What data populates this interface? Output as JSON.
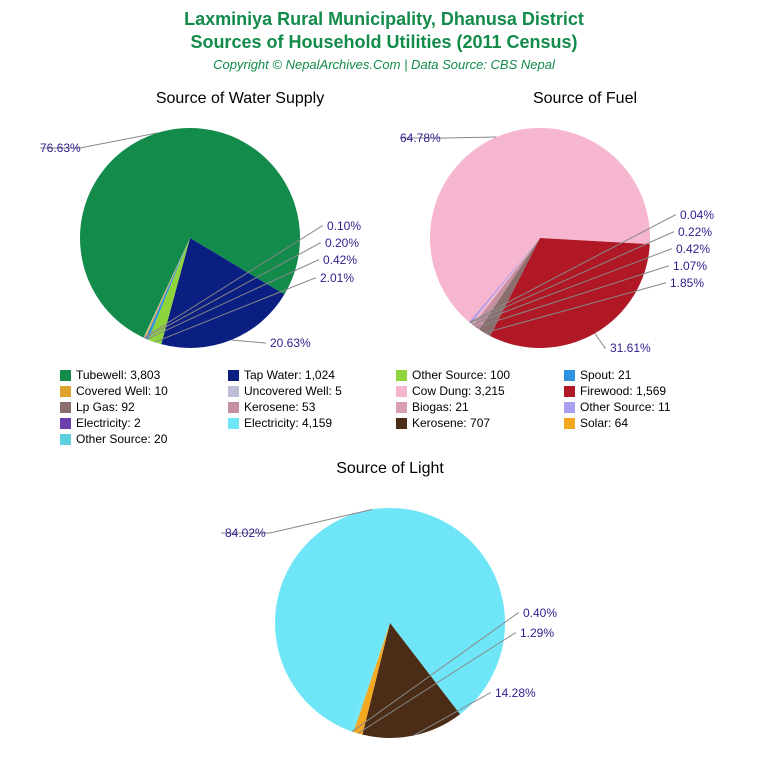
{
  "title_line1": "Laxminiya Rural Municipality, Dhanusa District",
  "title_line2": "Sources of Household Utilities (2011 Census)",
  "subtitle": "Copyright © NepalArchives.Com | Data Source: CBS Nepal",
  "title_color": "#128b4b",
  "label_color": "#2b1f8e",
  "leader_color": "#888888",
  "background_color": "#ffffff",
  "charts": {
    "water": {
      "title": "Source of Water Supply",
      "slices": [
        {
          "label": "76.63%",
          "value": 76.63,
          "color": "#128b4b"
        },
        {
          "label": "20.63%",
          "value": 20.63,
          "color": "#0b1e82"
        },
        {
          "label": "2.01%",
          "value": 2.01,
          "color": "#8ed53c"
        },
        {
          "label": "0.42%",
          "value": 0.42,
          "color": "#2f92e0"
        },
        {
          "label": "0.20%",
          "value": 0.2,
          "color": "#e0a22f"
        },
        {
          "label": "0.10%",
          "value": 0.1,
          "color": "#bcbfd6"
        }
      ]
    },
    "fuel": {
      "title": "Source of Fuel",
      "slices": [
        {
          "label": "64.78%",
          "value": 64.78,
          "color": "#f7b6cf"
        },
        {
          "label": "31.61%",
          "value": 31.61,
          "color": "#b01826"
        },
        {
          "label": "1.85%",
          "value": 1.85,
          "color": "#8b6f6f"
        },
        {
          "label": "1.07%",
          "value": 1.07,
          "color": "#c48f9f"
        },
        {
          "label": "0.42%",
          "value": 0.42,
          "color": "#f7b6cf"
        },
        {
          "label": "0.22%",
          "value": 0.22,
          "color": "#a79ff0"
        },
        {
          "label": "0.04%",
          "value": 0.04,
          "color": "#6b3fae"
        }
      ]
    },
    "light": {
      "title": "Source of Light",
      "slices": [
        {
          "label": "84.02%",
          "value": 84.02,
          "color": "#6fe6f7"
        },
        {
          "label": "14.28%",
          "value": 14.28,
          "color": "#4b2c16"
        },
        {
          "label": "1.29%",
          "value": 1.29,
          "color": "#f4a81f"
        },
        {
          "label": "0.40%",
          "value": 0.4,
          "color": "#6fe6f7"
        }
      ]
    }
  },
  "legend": [
    {
      "swatch": "#128b4b",
      "text": "Tubewell: 3,803"
    },
    {
      "swatch": "#0b1e82",
      "text": "Tap Water: 1,024"
    },
    {
      "swatch": "#8ed53c",
      "text": "Other Source: 100"
    },
    {
      "swatch": "#2f92e0",
      "text": "Spout: 21"
    },
    {
      "swatch": "#e0a22f",
      "text": "Covered Well: 10"
    },
    {
      "swatch": "#bcbfd6",
      "text": "Uncovered Well: 5"
    },
    {
      "swatch": "#f7b6cf",
      "text": "Cow Dung: 3,215"
    },
    {
      "swatch": "#b01826",
      "text": "Firewood: 1,569"
    },
    {
      "swatch": "#8b6f6f",
      "text": "Lp Gas: 92"
    },
    {
      "swatch": "#c48f9f",
      "text": "Kerosene: 53"
    },
    {
      "swatch": "#d99fb0",
      "text": "Biogas: 21"
    },
    {
      "swatch": "#a79ff0",
      "text": "Other Source: 11"
    },
    {
      "swatch": "#6b3fae",
      "text": "Electricity: 2"
    },
    {
      "swatch": "#6fe6f7",
      "text": "Electricity: 4,159"
    },
    {
      "swatch": "#4b2c16",
      "text": "Kerosene: 707"
    },
    {
      "swatch": "#f4a81f",
      "text": "Solar: 64"
    },
    {
      "swatch": "#5fd0e0",
      "text": "Other Source: 20"
    }
  ]
}
